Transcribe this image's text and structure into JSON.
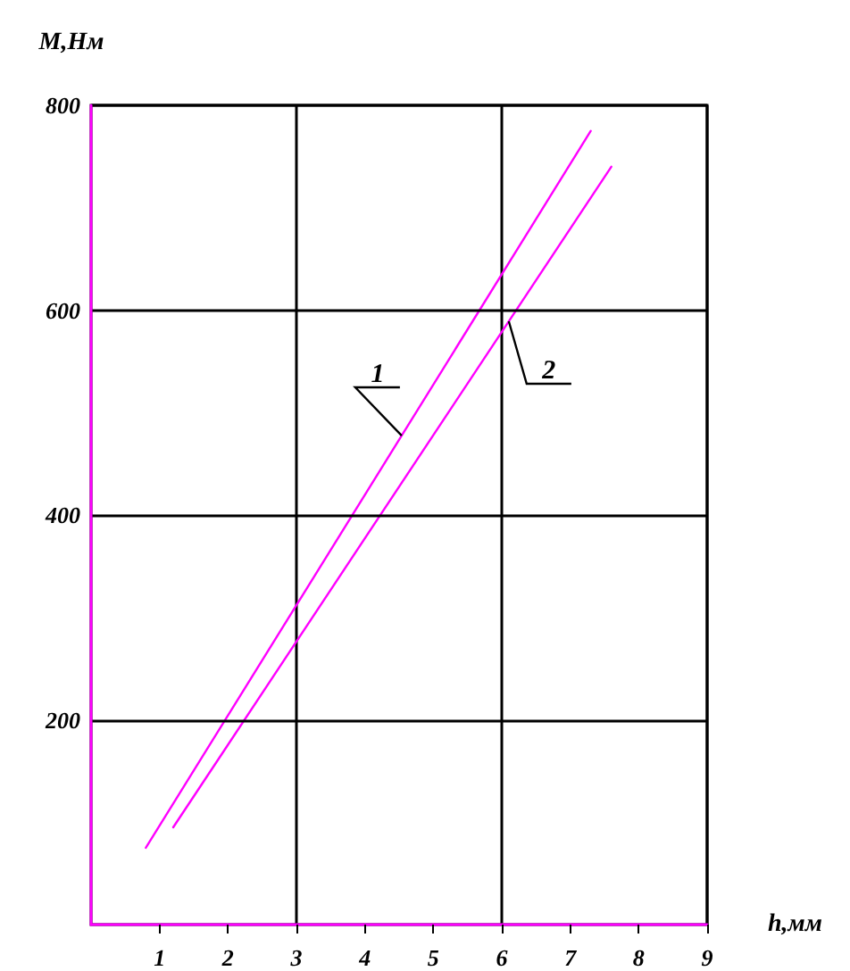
{
  "chart_data": {
    "type": "line",
    "xlabel": "h,мм",
    "ylabel": "M,Нм",
    "xlim": [
      0,
      9
    ],
    "xticks": [
      1,
      2,
      3,
      4,
      5,
      6,
      7,
      8,
      9
    ],
    "ylim": [
      0,
      800
    ],
    "yticks": [
      200,
      400,
      600,
      800
    ],
    "grid": true,
    "marker": "none",
    "line_style": "solid",
    "series": [
      {
        "name": "1",
        "color": "#ff00ff",
        "x": [
          0.8,
          7.3
        ],
        "values": [
          75,
          775
        ]
      },
      {
        "name": "2",
        "color": "#ff00ff",
        "x": [
          1.2,
          7.6
        ],
        "values": [
          95,
          740
        ]
      }
    ]
  }
}
